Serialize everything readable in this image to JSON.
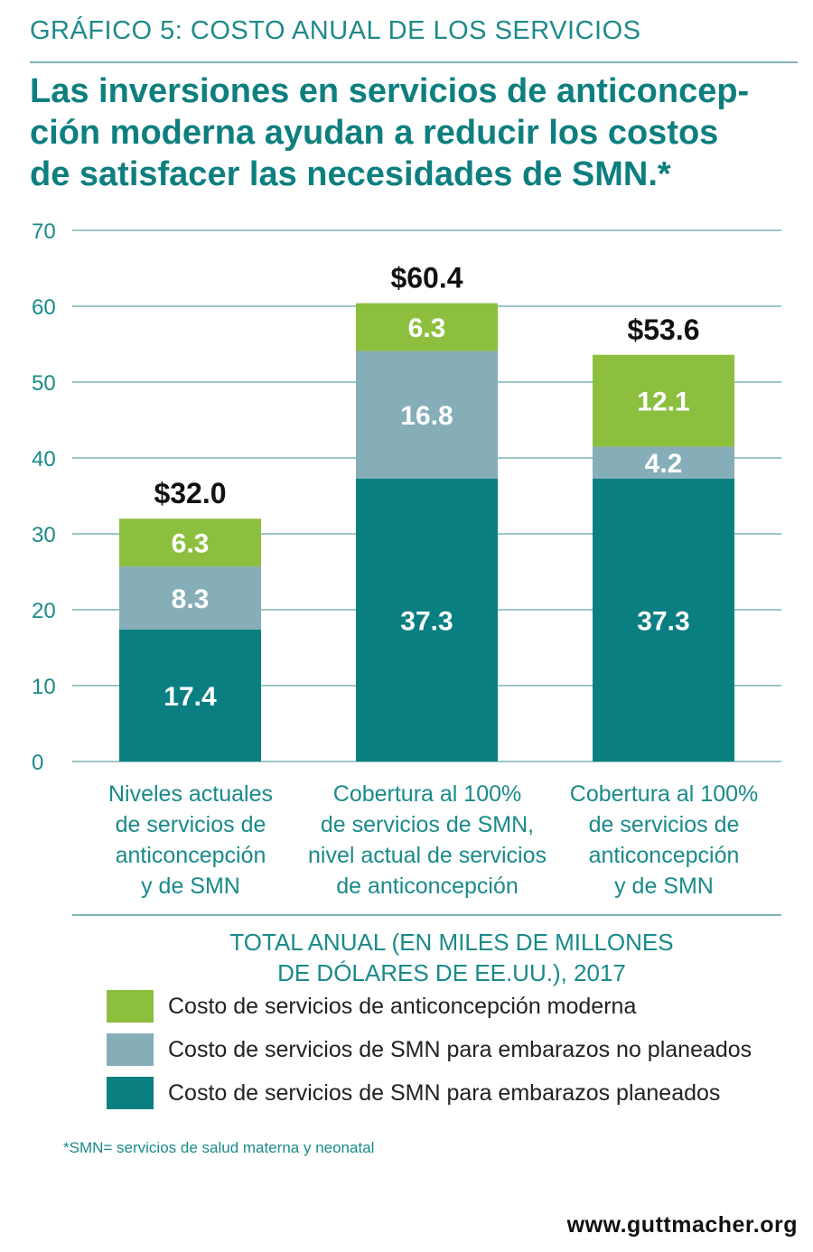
{
  "kicker": "GRÁFICO 5: COSTO ANUAL DE LOS SERVICIOS",
  "headline": [
    "Las inversiones en servicios de anticoncep-",
    "ción moderna ayudan a reducir los costos",
    "de satisfacer las necesidades de SMN.*"
  ],
  "colors": {
    "anticoncepcion": "#8dbf3f",
    "smn_no_planeados": "#85aeb8",
    "smn_planeados": "#0a7f82",
    "grid": "#7fb4b4",
    "axis_text": "#1a8a8a"
  },
  "chart_data": {
    "type": "bar",
    "stacked": true,
    "ylim": [
      0,
      70
    ],
    "yticks": [
      0,
      10,
      20,
      30,
      40,
      50,
      60,
      70
    ],
    "grid": true,
    "categories": [
      [
        "Niveles actuales",
        "de servicios de",
        "anticoncepción",
        "y de SMN"
      ],
      [
        "Cobertura al 100%",
        "de servicios de SMN,",
        "nivel actual de servicios",
        "de anticoncepción"
      ],
      [
        "Cobertura al 100%",
        "de servicios de",
        "anticoncepción",
        "y de SMN"
      ]
    ],
    "series": [
      {
        "name": "Costo de servicios de SMN para embarazos planeados",
        "values": [
          17.4,
          37.3,
          37.3
        ],
        "labels": [
          "17.4",
          "37.3",
          "37.3"
        ]
      },
      {
        "name": "Costo de servicios de SMN para embarazos no planeados",
        "values": [
          8.3,
          16.8,
          4.2
        ],
        "labels": [
          "8.3",
          "16.8",
          "4.2"
        ]
      },
      {
        "name": "Costo de servicios de anticoncepción moderna",
        "values": [
          6.3,
          6.3,
          12.1
        ],
        "labels": [
          "6.3",
          "6.3",
          "12.1"
        ]
      }
    ],
    "totals": [
      "$32.0",
      "$60.4",
      "$53.6"
    ]
  },
  "legend": {
    "title": [
      "TOTAL ANUAL (EN MILES DE MILLONES",
      "DE DÓLARES DE EE.UU.), 2017"
    ],
    "items": [
      "Costo de servicios de anticoncepción moderna",
      "Costo de servicios de SMN para embarazos no planeados",
      "Costo de servicios de SMN para embarazos planeados"
    ]
  },
  "footnote": "*SMN= servicios de salud materna y neonatal",
  "url": "www.guttmacher.org"
}
